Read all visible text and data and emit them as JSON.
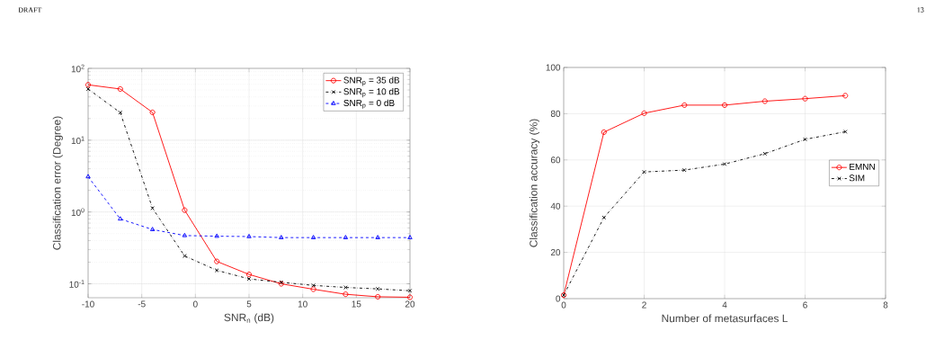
{
  "chart_data": [
    {
      "type": "line",
      "xlabel": "SNR$_{n}$ (dB)",
      "ylabel": "Classification error (Degree)",
      "annotations": [
        "DRAFT"
      ],
      "x": [
        -10,
        -7,
        -4,
        -1,
        2,
        5,
        8,
        11,
        14,
        17,
        20
      ],
      "series": [
        {
          "name": "SNR$_{p}$ = 35 dB",
          "color": "#ff0000",
          "marker": "circle",
          "line_style": "solid",
          "values": [
            59,
            51.6,
            24.4,
            1.06,
            0.205,
            0.135,
            0.1,
            0.084,
            0.0715,
            0.066,
            0.065
          ]
        },
        {
          "name": "SNR$_{p}$ = 10 dB",
          "color": "#000000",
          "marker": "cross",
          "line_style": "dashdot",
          "values": [
            51.6,
            24.2,
            1.13,
            0.244,
            0.154,
            0.117,
            0.105,
            0.095,
            0.089,
            0.085,
            0.08
          ]
        },
        {
          "name": "SNR$_{p}$ = 0 dB",
          "color": "#0000ff",
          "marker": "triangle",
          "line_style": "dashed",
          "values": [
            3.1,
            0.8,
            0.57,
            0.47,
            0.46,
            0.455,
            0.44,
            0.44,
            0.44,
            0.44,
            0.44
          ]
        }
      ],
      "log": "y",
      "xlim": [
        -10,
        20
      ],
      "ylim": [
        0.064,
        100
      ],
      "xticks": [
        -10,
        -5,
        0,
        5,
        10,
        15,
        20
      ],
      "yticks": [
        {
          "value": 0.1,
          "label": "10$^{-1}$"
        },
        {
          "value": 1,
          "label": "10$^{0}$"
        },
        {
          "value": 10,
          "label": "10$^{1}$"
        },
        {
          "value": 100,
          "label": "10$^{2}$"
        }
      ],
      "grid": true,
      "legend": "top right"
    },
    {
      "type": "line",
      "xlabel": "Number of metasurfaces L",
      "ylabel": "Classification accuracy (%)",
      "annotations": [
        "13"
      ],
      "x": [
        0,
        1,
        2,
        3,
        4,
        5,
        6,
        7
      ],
      "series": [
        {
          "name": "EMNN",
          "color": "#ff0000",
          "marker": "circle",
          "line_style": "solid",
          "values": [
            1.5,
            72.0,
            80.2,
            83.7,
            83.7,
            85.4,
            86.5,
            87.8
          ]
        },
        {
          "name": "SIM",
          "color": "#000000",
          "marker": "cross",
          "line_style": "dashdot",
          "values": [
            1.5,
            35.1,
            54.8,
            55.6,
            58.2,
            62.7,
            68.9,
            72.2
          ]
        }
      ],
      "xlim": [
        0,
        8
      ],
      "ylim": [
        0,
        100
      ],
      "xticks": [
        0,
        2,
        4,
        6,
        8
      ],
      "yticks": [
        0,
        20,
        40,
        60,
        80,
        100
      ],
      "grid": true,
      "legend": "right"
    }
  ]
}
